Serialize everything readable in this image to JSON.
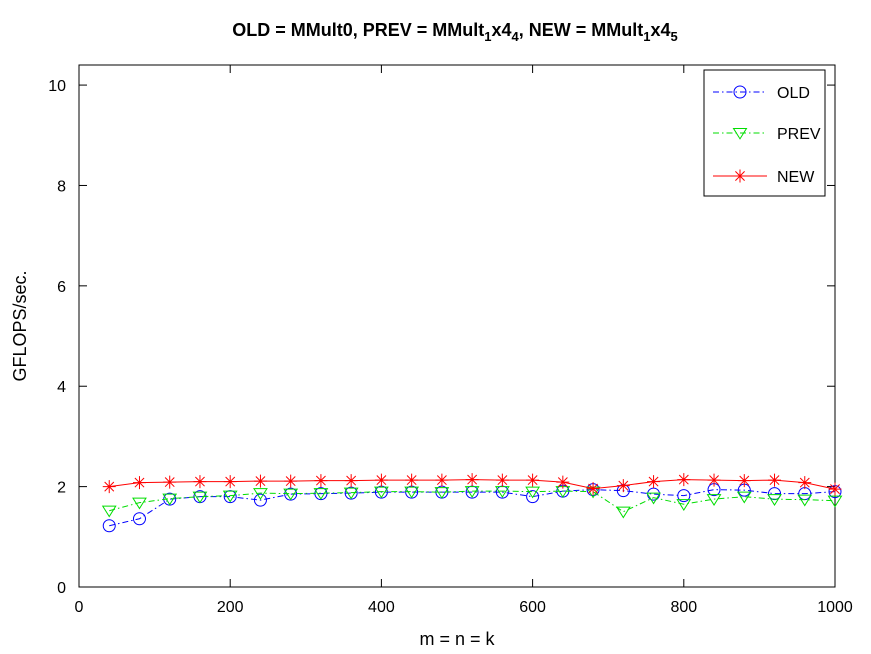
{
  "chart_data": {
    "type": "line",
    "title": {
      "part1": "OLD = MMult0, PREV = MMult",
      "sub1": "1",
      "part2": "x4",
      "sub2": "4",
      "part3": ", NEW = MMult",
      "sub3": "1",
      "part4": "x4",
      "sub4": "5"
    },
    "xlabel": "m = n = k",
    "ylabel": "GFLOPS/sec.",
    "xlim": [
      0,
      1000
    ],
    "ylim": [
      0,
      10.4
    ],
    "xticks": [
      0,
      200,
      400,
      600,
      800,
      1000
    ],
    "yticks": [
      0,
      2,
      4,
      6,
      8,
      10
    ],
    "grid": false,
    "legend_position": "top-right",
    "x": [
      40,
      80,
      120,
      160,
      200,
      240,
      280,
      320,
      360,
      400,
      440,
      480,
      520,
      560,
      600,
      640,
      680,
      720,
      760,
      800,
      840,
      880,
      920,
      960,
      1000
    ],
    "series": [
      {
        "name": "OLD",
        "color": "#0000ff",
        "marker": "circle",
        "line": "dash-dot",
        "values": [
          1.22,
          1.36,
          1.75,
          1.8,
          1.8,
          1.73,
          1.85,
          1.86,
          1.87,
          1.89,
          1.89,
          1.89,
          1.89,
          1.89,
          1.8,
          1.91,
          1.94,
          1.92,
          1.85,
          1.82,
          1.94,
          1.93,
          1.86,
          1.86,
          1.9
        ]
      },
      {
        "name": "PREV",
        "color": "#00dd00",
        "marker": "triangle-down",
        "line": "dash-dot",
        "values": [
          1.52,
          1.68,
          1.76,
          1.8,
          1.82,
          1.87,
          1.86,
          1.87,
          1.88,
          1.9,
          1.9,
          1.89,
          1.91,
          1.91,
          1.9,
          1.91,
          1.9,
          1.5,
          1.78,
          1.65,
          1.75,
          1.8,
          1.75,
          1.74,
          1.72
        ]
      },
      {
        "name": "NEW",
        "color": "#ff0000",
        "marker": "star",
        "line": "solid",
        "values": [
          2.0,
          2.08,
          2.09,
          2.1,
          2.1,
          2.11,
          2.11,
          2.12,
          2.12,
          2.13,
          2.13,
          2.13,
          2.14,
          2.13,
          2.13,
          2.09,
          1.96,
          2.02,
          2.1,
          2.14,
          2.13,
          2.12,
          2.13,
          2.08,
          1.95
        ]
      }
    ]
  }
}
